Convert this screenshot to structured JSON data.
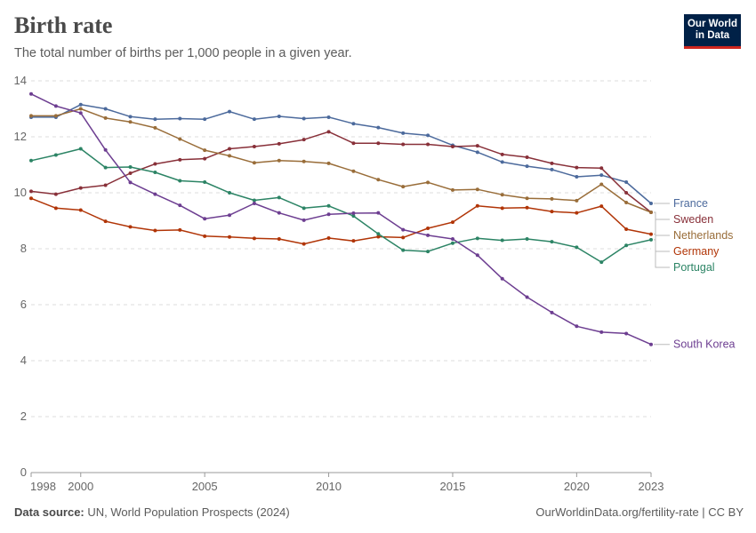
{
  "header": {
    "title": "Birth rate",
    "subtitle": "The total number of births per 1,000 people in a given year."
  },
  "logo": {
    "line1": "Our World",
    "line2": "in Data"
  },
  "footer": {
    "source_label": "Data source:",
    "source_text": "UN, World Population Prospects (2024)",
    "right_text": "OurWorldinData.org/fertility-rate | CC BY"
  },
  "chart_data": {
    "type": "line",
    "title": "Birth rate",
    "xlabel": "",
    "ylabel": "",
    "xlim": [
      1998,
      2023
    ],
    "ylim": [
      0,
      14
    ],
    "grid": true,
    "legend": "right",
    "x": [
      1998,
      1999,
      2000,
      2001,
      2002,
      2003,
      2004,
      2005,
      2006,
      2007,
      2008,
      2009,
      2010,
      2011,
      2012,
      2013,
      2014,
      2015,
      2016,
      2017,
      2018,
      2019,
      2020,
      2021,
      2022,
      2023
    ],
    "x_ticks": [
      1998,
      2000,
      2005,
      2010,
      2015,
      2020,
      2023
    ],
    "y_ticks": [
      0,
      2,
      4,
      6,
      8,
      10,
      12,
      14
    ],
    "series": [
      {
        "name": "France",
        "color": "#4c6a9c",
        "values": [
          12.7,
          12.7,
          13.15,
          13.0,
          12.72,
          12.63,
          12.65,
          12.63,
          12.9,
          12.63,
          12.73,
          12.65,
          12.7,
          12.47,
          12.33,
          12.13,
          12.05,
          11.7,
          11.45,
          11.1,
          10.95,
          10.83,
          10.57,
          10.63,
          10.38,
          9.62
        ]
      },
      {
        "name": "Sweden",
        "color": "#883039",
        "values": [
          10.05,
          9.95,
          10.17,
          10.27,
          10.7,
          11.03,
          11.18,
          11.22,
          11.57,
          11.65,
          11.75,
          11.9,
          12.18,
          11.77,
          11.77,
          11.73,
          11.73,
          11.65,
          11.68,
          11.37,
          11.27,
          11.05,
          10.9,
          10.88,
          10.0,
          9.3
        ]
      },
      {
        "name": "Netherlands",
        "color": "#996d39",
        "values": [
          12.75,
          12.75,
          13.0,
          12.67,
          12.53,
          12.32,
          11.92,
          11.52,
          11.32,
          11.07,
          11.15,
          11.12,
          11.05,
          10.77,
          10.47,
          10.22,
          10.37,
          10.1,
          10.12,
          9.93,
          9.8,
          9.78,
          9.72,
          10.3,
          9.65,
          9.3
        ]
      },
      {
        "name": "Germany",
        "color": "#b13507",
        "values": [
          9.8,
          9.45,
          9.38,
          8.98,
          8.78,
          8.65,
          8.67,
          8.45,
          8.42,
          8.37,
          8.35,
          8.17,
          8.38,
          8.28,
          8.43,
          8.4,
          8.73,
          8.95,
          9.53,
          9.45,
          9.47,
          9.33,
          9.28,
          9.52,
          8.7,
          8.52
        ]
      },
      {
        "name": "Portugal",
        "color": "#2c8465",
        "values": [
          11.15,
          11.35,
          11.57,
          10.9,
          10.92,
          10.73,
          10.43,
          10.38,
          10.0,
          9.73,
          9.83,
          9.45,
          9.53,
          9.17,
          8.53,
          7.95,
          7.9,
          8.2,
          8.37,
          8.3,
          8.35,
          8.25,
          8.05,
          7.52,
          8.12,
          8.32
        ]
      },
      {
        "name": "South Korea",
        "color": "#6d3e91",
        "values": [
          13.53,
          13.1,
          12.85,
          11.53,
          10.37,
          9.95,
          9.55,
          9.07,
          9.2,
          9.62,
          9.28,
          9.02,
          9.23,
          9.27,
          9.28,
          8.68,
          8.48,
          8.35,
          7.77,
          6.93,
          6.27,
          5.72,
          5.23,
          5.02,
          4.97,
          4.58
        ]
      }
    ]
  }
}
